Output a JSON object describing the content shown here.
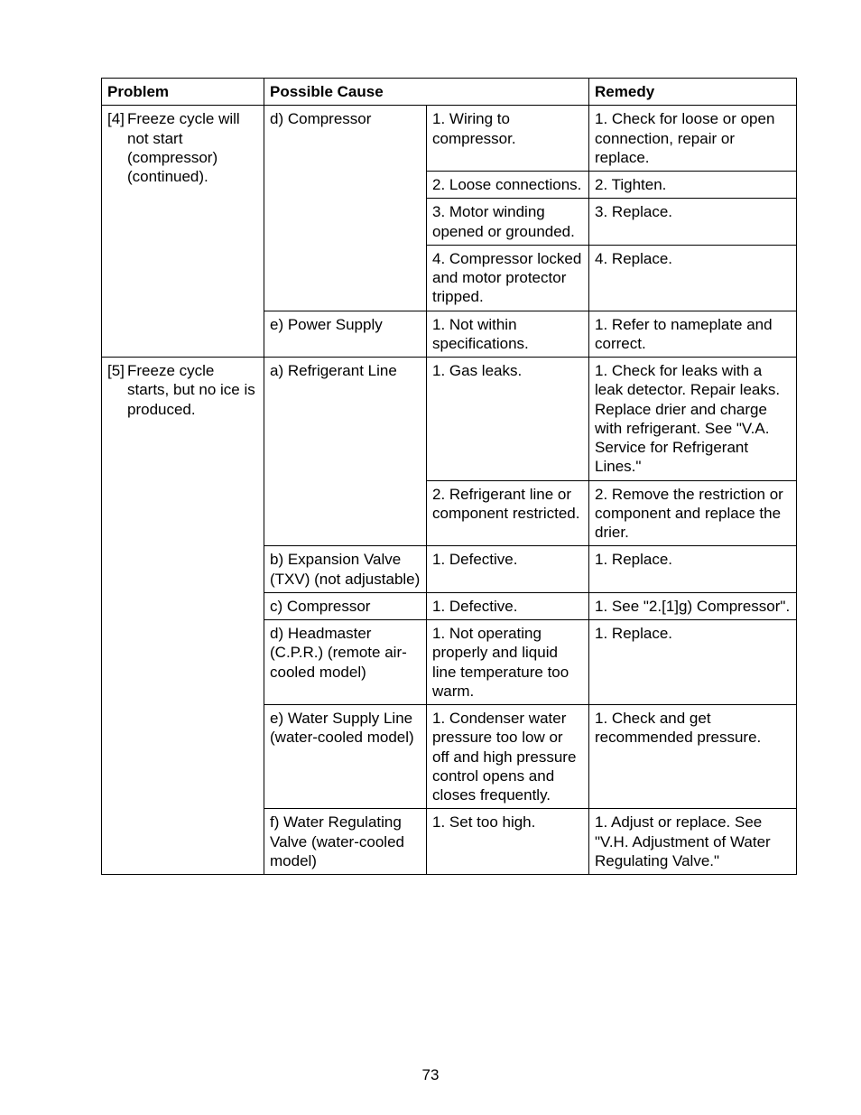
{
  "header": {
    "problem": "Problem",
    "cause": "Possible Cause",
    "remedy": "Remedy"
  },
  "rows": {
    "r4": {
      "problem_idx": "[4]",
      "problem": "Freeze cycle will not start (compressor) (continued).",
      "d": {
        "cause": "d) Compressor",
        "s1": {
          "c": "1. Wiring to compressor.",
          "r": "1. Check for loose or open connection, repair or replace."
        },
        "s2": {
          "c": "2. Loose connections.",
          "r": "2. Tighten."
        },
        "s3": {
          "c": "3. Motor winding opened or grounded.",
          "r": "3. Replace."
        },
        "s4": {
          "c": "4. Compressor locked and motor protector tripped.",
          "r": "4. Replace."
        }
      },
      "e": {
        "cause": "e) Power Supply",
        "s1": {
          "c": "1. Not within specifications.",
          "r": "1. Refer to nameplate and correct."
        }
      }
    },
    "r5": {
      "problem_idx": "[5]",
      "problem": "Freeze cycle starts, but no ice is produced.",
      "a": {
        "cause": "a) Refrigerant Line",
        "s1": {
          "c": "1. Gas leaks.",
          "r": "1. Check for leaks with a leak detector. Repair leaks. Replace drier and charge with refrigerant. See \"V.A. Service for Refrigerant Lines.\""
        },
        "s2": {
          "c": "2. Refrigerant line or component restricted.",
          "r": "2. Remove the restriction or component and replace the drier."
        }
      },
      "b": {
        "cause": "b) Expansion Valve (TXV) (not adjustable)",
        "s1": {
          "c": "1. Defective.",
          "r": "1. Replace."
        }
      },
      "c": {
        "cause": "c) Compressor",
        "s1": {
          "c": "1. Defective.",
          "r": "1. See \"2.[1]g) Compressor\"."
        }
      },
      "d": {
        "cause": "d) Headmaster (C.P.R.) (remote air-cooled model)",
        "s1": {
          "c": "1. Not operating properly and liquid line temperature too warm.",
          "r": "1. Replace."
        }
      },
      "e": {
        "cause": "e) Water Supply Line (water-cooled model)",
        "s1": {
          "c": "1. Condenser water pressure too low or off and high pressure control opens and closes frequently.",
          "r": "1. Check and get recommended pressure."
        }
      },
      "f": {
        "cause": "f)  Water Regulating Valve (water-cooled model)",
        "s1": {
          "c": "1. Set too high.",
          "r": "1. Adjust or replace. See \"V.H. Adjustment of Water Regulating Valve.\""
        }
      }
    }
  },
  "pageNumber": "73"
}
